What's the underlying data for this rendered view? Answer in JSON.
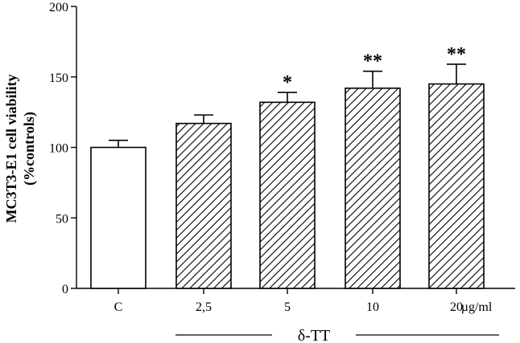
{
  "chart_data": {
    "type": "bar",
    "title": "",
    "ylabel_line1": "MC3T3-E1 cell viability",
    "ylabel_line2": "(%controls)",
    "xlabel": "",
    "categories": [
      "C",
      "2,5",
      "5",
      "10",
      "20"
    ],
    "unit_label": "µg/ml",
    "group_label": "δ-TT",
    "values": [
      100,
      117,
      132,
      142,
      145
    ],
    "errors": [
      5,
      6,
      7,
      12,
      14
    ],
    "significance": [
      "",
      "",
      "*",
      "**",
      "**"
    ],
    "ylim": [
      0,
      200
    ],
    "yticks": [
      0,
      50,
      100,
      150,
      200
    ],
    "fills": [
      "plain",
      "hatched",
      "hatched",
      "hatched",
      "hatched"
    ],
    "grid": false
  }
}
